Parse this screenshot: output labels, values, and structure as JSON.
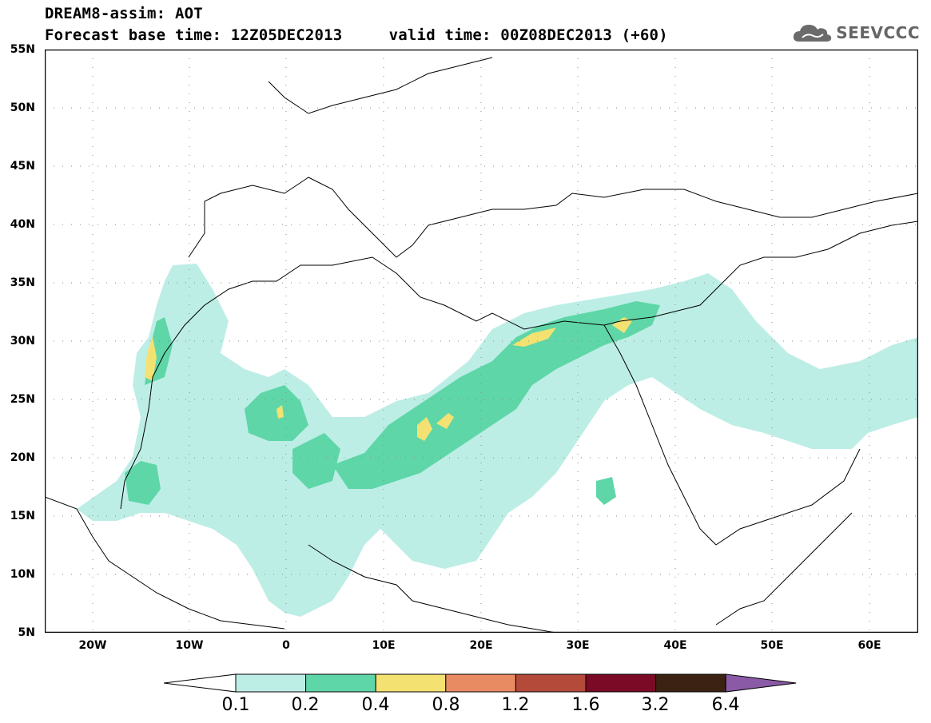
{
  "header": {
    "title_line1": "DREAM8-assim: AOT",
    "title_line2": "Forecast base time: 12Z05DEC2013     valid time: 00Z08DEC2013 (+60)"
  },
  "logo": {
    "icon": "cloud-icon",
    "text": "SEEVCCC"
  },
  "map": {
    "projection": "cylindrical equidistant",
    "lon_range": [
      -25,
      65
    ],
    "lat_range": [
      5,
      55
    ],
    "lat_labels": [
      "55N",
      "50N",
      "45N",
      "40N",
      "35N",
      "30N",
      "25N",
      "20N",
      "15N",
      "10N",
      "5N"
    ],
    "lon_labels": [
      "20W",
      "10W",
      "0",
      "10E",
      "20E",
      "30E",
      "40E",
      "50E",
      "60E"
    ],
    "gridlines": "dotted"
  },
  "colorbar": {
    "levels": [
      "0.1",
      "0.2",
      "0.4",
      "0.8",
      "1.2",
      "1.6",
      "3.2",
      "6.4"
    ],
    "colors": [
      "#ffffff",
      "#bdeee6",
      "#5fd6a8",
      "#f3e271",
      "#e88a62",
      "#b34a3a",
      "#7a0a25",
      "#3b2213",
      "#8a5aa6"
    ]
  }
}
